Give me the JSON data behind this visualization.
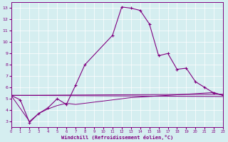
{
  "background_color": "#d5eef0",
  "grid_color": "#ffffff",
  "line_color": "#800080",
  "xlabel": "Windchill (Refroidissement éolien,°C)",
  "xlim": [
    0,
    23
  ],
  "ylim": [
    2.5,
    13.5
  ],
  "yticks": [
    3,
    4,
    5,
    6,
    7,
    8,
    9,
    10,
    11,
    12,
    13
  ],
  "xticks": [
    0,
    1,
    2,
    3,
    4,
    5,
    6,
    7,
    8,
    9,
    10,
    11,
    12,
    13,
    14,
    15,
    16,
    17,
    18,
    19,
    20,
    21,
    22,
    23
  ],
  "line1_x": [
    0,
    1,
    2,
    3,
    4,
    5,
    6,
    7,
    8,
    11,
    12,
    13,
    14,
    15,
    16,
    17,
    18,
    19,
    20,
    21,
    22,
    23
  ],
  "line1_y": [
    5.3,
    4.9,
    2.9,
    3.7,
    4.2,
    5.0,
    4.5,
    6.2,
    8.0,
    10.6,
    13.1,
    13.0,
    12.8,
    11.6,
    8.8,
    9.0,
    7.6,
    7.7,
    6.5,
    6.0,
    5.5,
    5.3
  ],
  "line2_x": [
    0,
    23
  ],
  "line2_y": [
    5.3,
    5.4
  ],
  "line3_x": [
    0,
    23
  ],
  "line3_y": [
    5.3,
    5.2
  ],
  "line4_x": [
    0,
    2,
    3,
    4,
    5,
    6,
    7,
    8,
    9,
    10,
    11,
    12,
    13,
    14,
    15,
    16,
    17,
    18,
    19,
    20,
    21,
    22,
    23
  ],
  "line4_y": [
    5.3,
    3.0,
    3.7,
    4.1,
    4.4,
    4.6,
    4.5,
    4.6,
    4.7,
    4.8,
    4.9,
    5.0,
    5.1,
    5.15,
    5.2,
    5.25,
    5.3,
    5.35,
    5.4,
    5.45,
    5.5,
    5.55,
    5.3
  ],
  "figsize": [
    3.2,
    2.0
  ],
  "dpi": 100
}
